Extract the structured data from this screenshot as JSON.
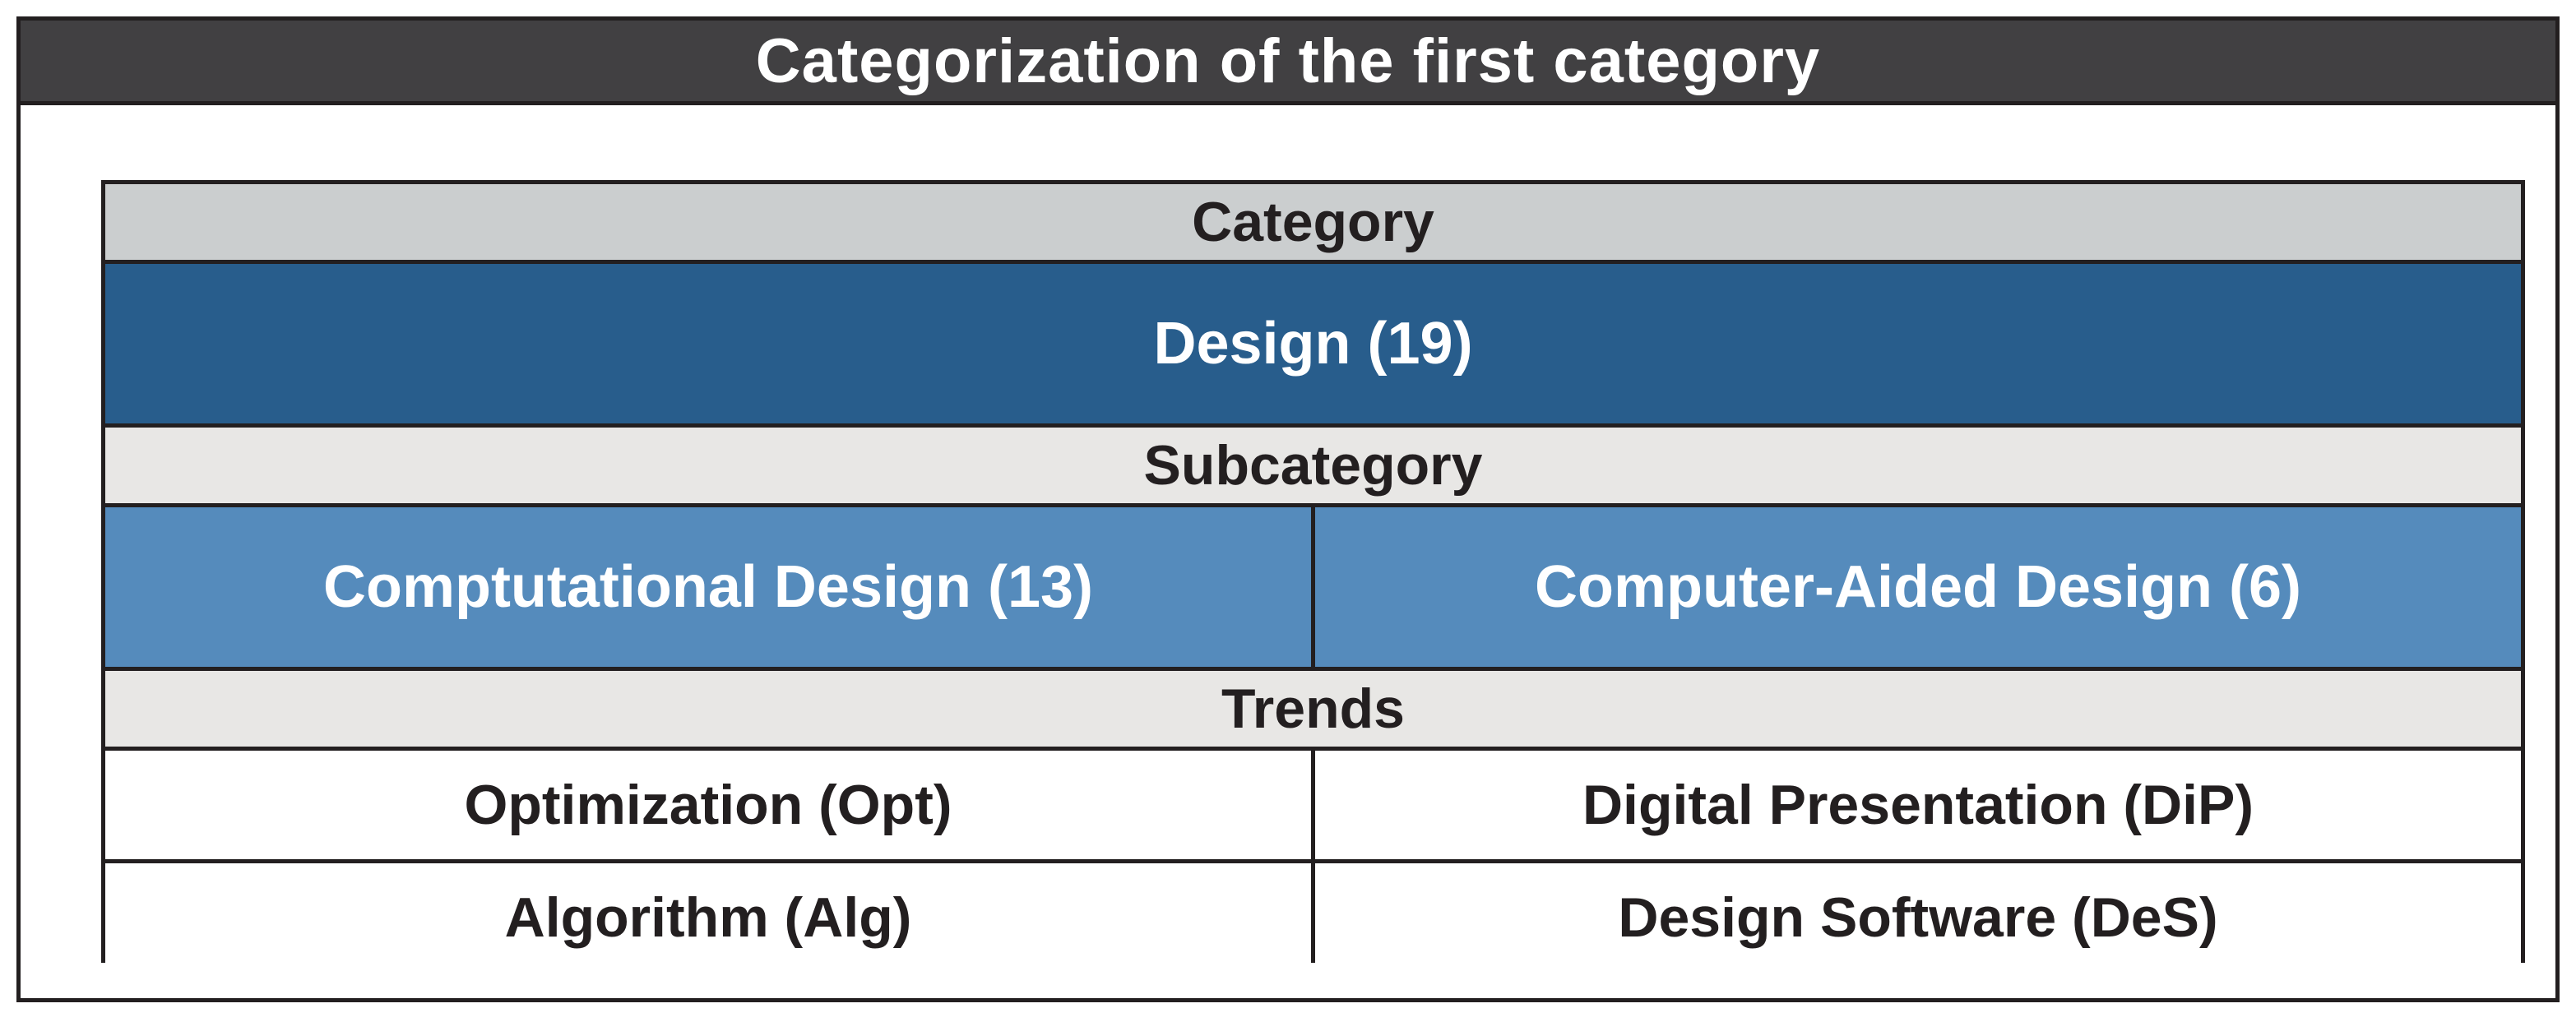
{
  "title": "Categorization of the first category",
  "colors": {
    "title_bar": "#414042",
    "category_header": "#cbcecf",
    "section_header": "#e8e7e5",
    "category_fill": "#285d8c",
    "subcategory_fill": "#558bbc",
    "border": "#231f20"
  },
  "table": {
    "category_header": "Category",
    "category": "Design (19)",
    "subcategory_header": "Subcategory",
    "subcategories": [
      "Comptutational Design (13)",
      "Computer-Aided Design (6)"
    ],
    "trends_header": "Trends",
    "trends": [
      [
        "Optimization (Opt)",
        "Digital Presentation (DiP)"
      ],
      [
        "Algorithm (Alg)",
        "Design Software (DeS)"
      ]
    ]
  }
}
